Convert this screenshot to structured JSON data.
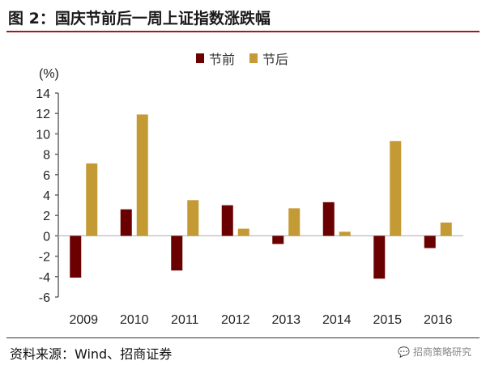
{
  "title": "图 2：国庆节前后一周上证指数涨跌幅",
  "footer": {
    "source": "资料来源：Wind、招商证券",
    "watermark": "招商策略研究"
  },
  "chart_data": {
    "type": "bar",
    "unit_label": "(%)",
    "categories": [
      "2009",
      "2010",
      "2011",
      "2012",
      "2013",
      "2014",
      "2015",
      "2016"
    ],
    "series": [
      {
        "name": "节前",
        "color": "#6b0000",
        "values": [
          -4.1,
          2.6,
          -3.4,
          3.0,
          -0.8,
          3.3,
          -4.2,
          -1.2
        ]
      },
      {
        "name": "节后",
        "color": "#c49a35",
        "values": [
          7.1,
          11.9,
          3.5,
          0.7,
          2.7,
          0.4,
          9.3,
          1.3
        ]
      }
    ],
    "ylim": [
      -6,
      14
    ],
    "yticks": [
      14,
      12,
      10,
      8,
      6,
      4,
      2,
      0,
      -2,
      -4,
      -6
    ],
    "legend": "top-center",
    "grid": false
  }
}
